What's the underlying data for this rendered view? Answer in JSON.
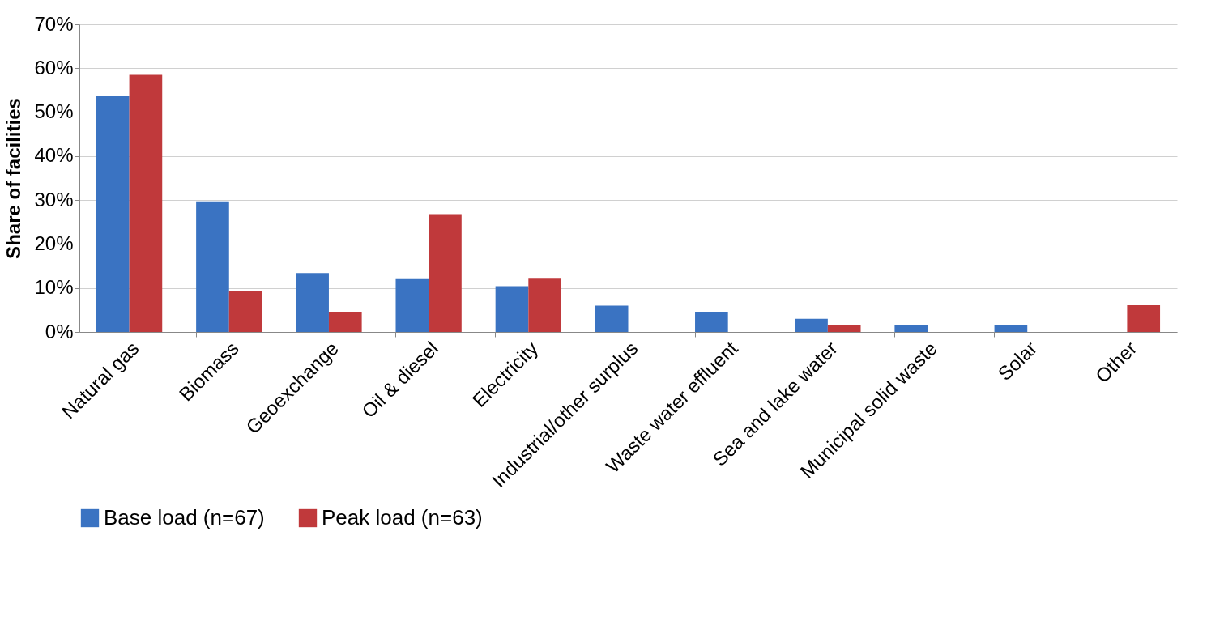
{
  "chart_data": {
    "type": "bar",
    "ylabel": "Share of facilities",
    "categories": [
      "Natural gas",
      "Biomass",
      "Geoexchange",
      "Oil & diesel",
      "Electricity",
      "Industrial/other surplus",
      "Waste water effluent",
      "Sea and lake water",
      "Municipal solid waste",
      "Solar",
      "Other"
    ],
    "series": [
      {
        "name": "Base load (n=67)",
        "color": "#3a73c2",
        "values": [
          53.8,
          29.7,
          13.4,
          12.0,
          10.4,
          6.0,
          4.5,
          3.0,
          1.5,
          1.5,
          0
        ]
      },
      {
        "name": "Peak load (n=63)",
        "color": "#c0393b",
        "values": [
          58.5,
          9.2,
          4.4,
          26.8,
          12.1,
          0,
          0,
          1.5,
          0,
          0,
          6.1
        ]
      }
    ],
    "ylim": [
      0,
      70
    ],
    "yticks": [
      {
        "value": 0,
        "label": "0%"
      },
      {
        "value": 10,
        "label": "10%"
      },
      {
        "value": 20,
        "label": "20%"
      },
      {
        "value": 30,
        "label": "30%"
      },
      {
        "value": 40,
        "label": "40%"
      },
      {
        "value": 50,
        "label": "50%"
      },
      {
        "value": 60,
        "label": "60%"
      },
      {
        "value": 70,
        "label": "70%"
      }
    ],
    "grid": "y",
    "legend": "bottom"
  }
}
